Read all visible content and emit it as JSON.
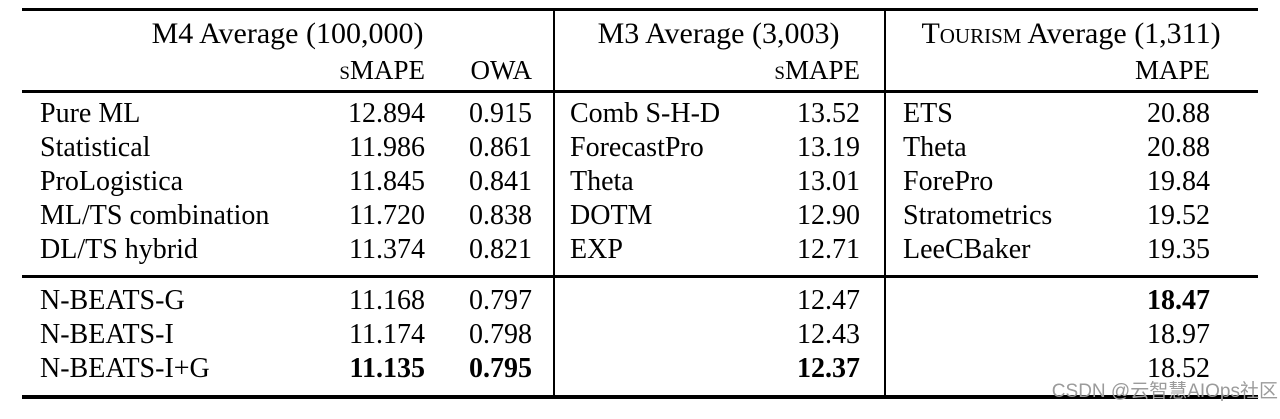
{
  "header": {
    "m4_title": "M4 Average (100,000)",
    "m4_metric1": "sMAPE",
    "m4_metric2": "OWA",
    "m3_title": "M3 Average (3,003)",
    "m3_metric": "sMAPE",
    "tourism_title_sc": "Tourism",
    "tourism_title_rest": "Average (1,311)",
    "tourism_metric": "MAPE"
  },
  "table": {
    "group1": [
      {
        "m4_label": "Pure ML",
        "m4_smape": "12.894",
        "m4_owa": "0.915",
        "m3_label": "Comb S-H-D",
        "m3_smape": "13.52",
        "t_label": "ETS",
        "t_mape": "20.88"
      },
      {
        "m4_label": "Statistical",
        "m4_smape": "11.986",
        "m4_owa": "0.861",
        "m3_label": "ForecastPro",
        "m3_smape": "13.19",
        "t_label": "Theta",
        "t_mape": "20.88"
      },
      {
        "m4_label": "ProLogistica",
        "m4_smape": "11.845",
        "m4_owa": "0.841",
        "m3_label": "Theta",
        "m3_smape": "13.01",
        "t_label": "ForePro",
        "t_mape": "19.84"
      },
      {
        "m4_label": "ML/TS combination",
        "m4_smape": "11.720",
        "m4_owa": "0.838",
        "m3_label": "DOTM",
        "m3_smape": "12.90",
        "t_label": "Stratometrics",
        "t_mape": "19.52"
      },
      {
        "m4_label": "DL/TS hybrid",
        "m4_smape": "11.374",
        "m4_owa": "0.821",
        "m3_label": "EXP",
        "m3_smape": "12.71",
        "t_label": "LeeCBaker",
        "t_mape": "19.35"
      }
    ],
    "group2": [
      {
        "m4_label": "N-BEATS-G",
        "m4_smape": "11.168",
        "m4_owa": "0.797",
        "m3_smape": "12.47",
        "t_mape": "18.47"
      },
      {
        "m4_label": "N-BEATS-I",
        "m4_smape": "11.174",
        "m4_owa": "0.798",
        "m3_smape": "12.43",
        "t_mape": "18.97"
      },
      {
        "m4_label": "N-BEATS-I+G",
        "m4_smape": "11.135",
        "m4_owa": "0.795",
        "m3_smape": "12.37",
        "t_mape": "18.52"
      }
    ]
  },
  "watermark": {
    "text": "CSDN @云智慧AIOps社区"
  }
}
